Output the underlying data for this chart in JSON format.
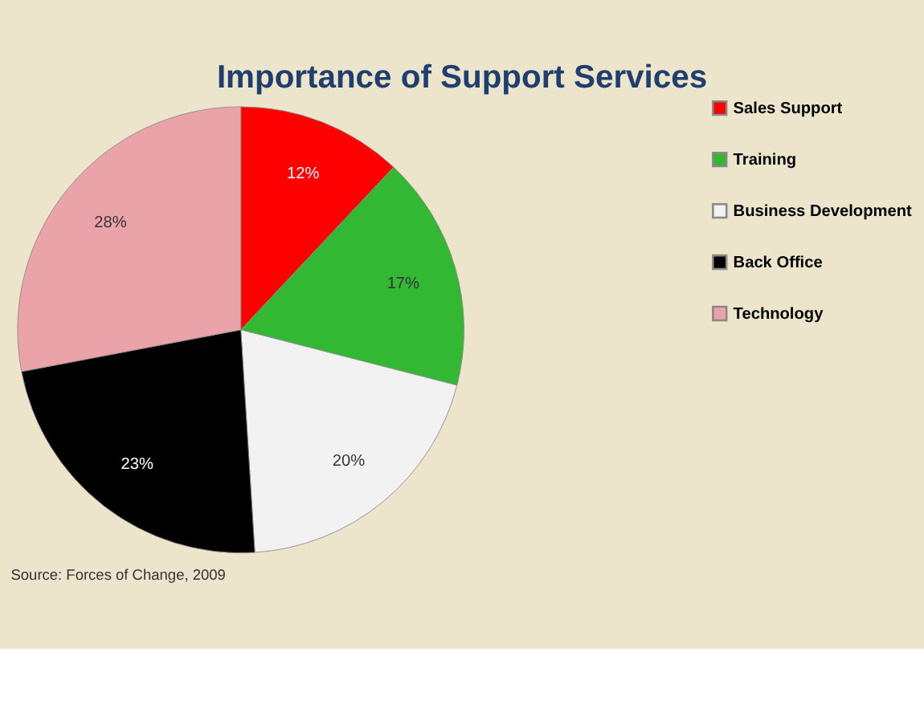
{
  "chart_data": {
    "type": "pie",
    "title": "Importance of Support Services",
    "categories": [
      "Sales Support",
      "Training",
      "Business Development",
      "Back Office",
      "Technology"
    ],
    "values": [
      12,
      17,
      20,
      23,
      28
    ],
    "colors": [
      "#ff0000",
      "#33b833",
      "#f2f2f2",
      "#000000",
      "#eba3aa"
    ],
    "value_labels": [
      "12%",
      "17%",
      "20%",
      "23%",
      "28%"
    ],
    "legend": "right",
    "annotations": [
      "Source: Forces of Change, 2009"
    ]
  }
}
